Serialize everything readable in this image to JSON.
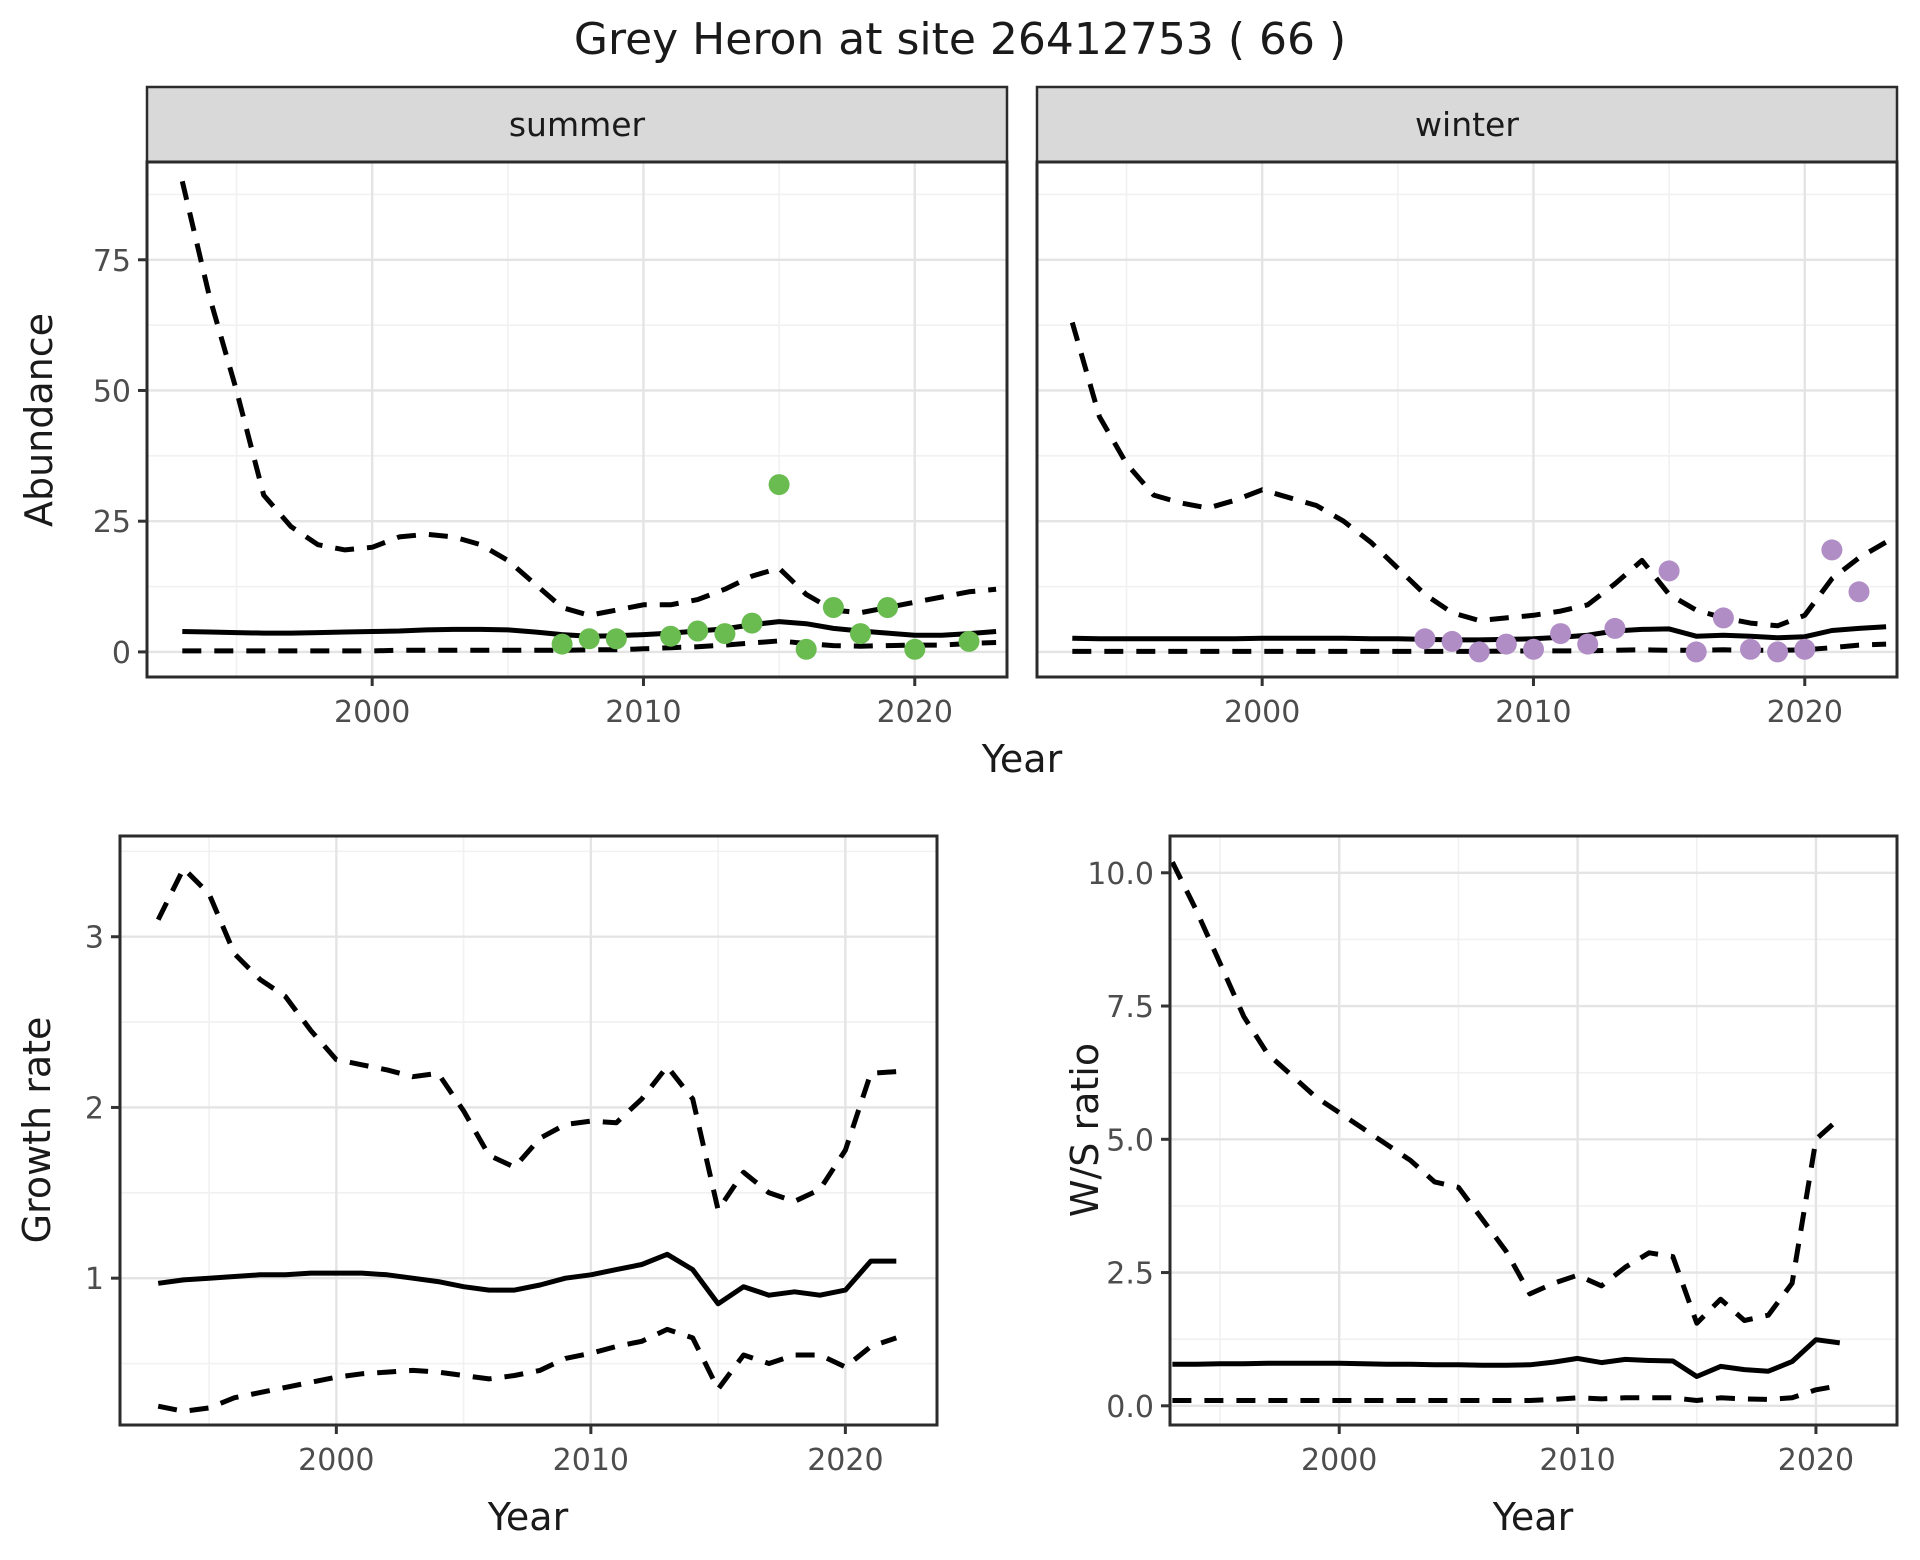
{
  "title": "Grey Heron at site 26412753 ( 66 )",
  "colors": {
    "summer_points": "#6abc51",
    "winter_points": "#b18dc6",
    "line": "#000000",
    "strip_bg": "#d9d9d9",
    "panel_border": "#2b2b2b",
    "grid_major": "#e4e4e4",
    "grid_minor": "#f1f1f1",
    "tick_text": "#4d4d4d"
  },
  "chart_data": [
    {
      "id": "abundance-summer",
      "type": "line",
      "facet_label": "summer",
      "ylabel": "Abundance",
      "xlabel": "Year",
      "xlim": [
        1991.7,
        2023.4
      ],
      "ylim": [
        -4.8,
        93.7
      ],
      "xticks": [
        2000,
        2010,
        2020
      ],
      "xtick_labels": [
        "2000",
        "2010",
        "2020"
      ],
      "xminor": [
        1995,
        2005,
        2015
      ],
      "yticks": [
        0,
        25,
        50,
        75
      ],
      "ytick_labels": [
        "0",
        "25",
        "50",
        "75"
      ],
      "yminor": [
        12.5,
        37.5,
        62.5,
        87.5
      ],
      "x": [
        1993,
        1994,
        1995,
        1996,
        1997,
        1998,
        1999,
        2000,
        2001,
        2002,
        2003,
        2004,
        2005,
        2006,
        2007,
        2008,
        2009,
        2010,
        2011,
        2012,
        2013,
        2014,
        2015,
        2016,
        2017,
        2018,
        2019,
        2020,
        2021,
        2022,
        2023
      ],
      "series": [
        {
          "name": "upper 95% CI",
          "style": "dashed",
          "y": [
            90,
            68,
            50,
            30,
            24,
            20.5,
            19.5,
            20,
            22,
            22.5,
            22,
            20.5,
            17.5,
            13,
            8.5,
            7,
            8,
            9,
            9,
            10,
            12,
            14.5,
            16,
            11,
            8,
            7.5,
            8.5,
            9.5,
            10.5,
            11.5,
            12
          ]
        },
        {
          "name": "median",
          "style": "solid",
          "y": [
            3.9,
            3.8,
            3.7,
            3.6,
            3.6,
            3.7,
            3.8,
            3.9,
            4.0,
            4.2,
            4.3,
            4.3,
            4.2,
            3.8,
            3.3,
            3.0,
            3.1,
            3.3,
            3.6,
            4.0,
            4.4,
            5.2,
            5.8,
            5.4,
            4.5,
            4.0,
            3.6,
            3.2,
            3.2,
            3.5,
            3.9
          ]
        },
        {
          "name": "lower 95% CI",
          "style": "dashed",
          "y": [
            0.2,
            0.2,
            0.2,
            0.2,
            0.2,
            0.2,
            0.2,
            0.2,
            0.3,
            0.3,
            0.3,
            0.3,
            0.3,
            0.3,
            0.3,
            0.4,
            0.4,
            0.6,
            0.8,
            1.0,
            1.3,
            1.7,
            2.1,
            1.6,
            1.2,
            1.1,
            1.2,
            1.3,
            1.3,
            1.6,
            1.8
          ]
        }
      ],
      "points": {
        "name": "observed summer counts",
        "color": "#6abc51",
        "x": [
          2007,
          2008,
          2009,
          2011,
          2012,
          2013,
          2014,
          2015,
          2016,
          2017,
          2018,
          2019,
          2020,
          2022
        ],
        "y": [
          1.5,
          2.5,
          2.5,
          3,
          4,
          3.5,
          5.5,
          32,
          0.5,
          8.5,
          3.5,
          8.5,
          0.5,
          2
        ]
      }
    },
    {
      "id": "abundance-winter",
      "type": "line",
      "facet_label": "winter",
      "ylabel": "Abundance",
      "xlabel": "Year",
      "xlim": [
        1991.7,
        2023.4
      ],
      "ylim": [
        -4.8,
        93.7
      ],
      "xticks": [
        2000,
        2010,
        2020
      ],
      "xtick_labels": [
        "2000",
        "2010",
        "2020"
      ],
      "xminor": [
        1995,
        2005,
        2015
      ],
      "yticks": [
        0,
        25,
        50,
        75
      ],
      "ytick_labels": [
        "0",
        "25",
        "50",
        "75"
      ],
      "yminor": [
        12.5,
        37.5,
        62.5,
        87.5
      ],
      "x": [
        1993,
        1994,
        1995,
        1996,
        1997,
        1998,
        1999,
        2000,
        2001,
        2002,
        2003,
        2004,
        2005,
        2006,
        2007,
        2008,
        2009,
        2010,
        2011,
        2012,
        2013,
        2014,
        2015,
        2016,
        2017,
        2018,
        2019,
        2020,
        2021,
        2022,
        2023
      ],
      "series": [
        {
          "name": "upper 95% CI",
          "style": "dashed",
          "y": [
            63,
            45,
            36,
            30,
            28.5,
            27.5,
            29,
            31,
            29.5,
            28,
            25,
            21,
            16,
            11,
            7.5,
            6,
            6.5,
            7,
            7.8,
            9,
            13,
            17.5,
            11,
            8,
            6.5,
            5.5,
            5,
            7,
            14,
            18,
            21
          ]
        },
        {
          "name": "median",
          "style": "solid",
          "y": [
            2.6,
            2.5,
            2.5,
            2.5,
            2.5,
            2.5,
            2.5,
            2.6,
            2.6,
            2.6,
            2.6,
            2.5,
            2.5,
            2.4,
            2.3,
            2.3,
            2.4,
            2.5,
            2.8,
            3.2,
            4.0,
            4.3,
            4.4,
            3.0,
            3.2,
            3.0,
            2.7,
            2.9,
            4.1,
            4.5,
            4.8
          ]
        },
        {
          "name": "lower 95% CI",
          "style": "dashed",
          "y": [
            0.1,
            0.1,
            0.1,
            0.1,
            0.1,
            0.1,
            0.1,
            0.1,
            0.1,
            0.1,
            0.1,
            0.1,
            0.1,
            0.1,
            0.1,
            0.1,
            0.15,
            0.2,
            0.2,
            0.2,
            0.3,
            0.4,
            0.3,
            0.3,
            0.4,
            0.3,
            0.3,
            0.4,
            0.8,
            1.3,
            1.5
          ]
        }
      ],
      "points": {
        "name": "observed winter counts",
        "color": "#b18dc6",
        "x": [
          2006,
          2007,
          2008,
          2009,
          2010,
          2011,
          2012,
          2013,
          2015,
          2016,
          2017,
          2018,
          2019,
          2020,
          2021,
          2022
        ],
        "y": [
          2.5,
          2,
          0,
          1.5,
          0.5,
          3.5,
          1.5,
          4.5,
          15.5,
          0,
          6.5,
          0.5,
          0,
          0.5,
          19.5,
          11.5
        ]
      }
    },
    {
      "id": "growth-rate",
      "type": "line",
      "facet_label": null,
      "ylabel": "Growth rate",
      "xlabel": "Year",
      "xlim": [
        1991.5,
        2023.6
      ],
      "ylim": [
        0.14,
        3.59
      ],
      "xticks": [
        2000,
        2010,
        2020
      ],
      "xtick_labels": [
        "2000",
        "2010",
        "2020"
      ],
      "xminor": [
        1995,
        2005,
        2015
      ],
      "yticks": [
        1,
        2,
        3
      ],
      "ytick_labels": [
        "1",
        "2",
        "3"
      ],
      "yminor": [
        0.5,
        1.5,
        2.5,
        3.5
      ],
      "x": [
        1993,
        1994,
        1995,
        1996,
        1997,
        1998,
        1999,
        2000,
        2001,
        2002,
        2003,
        2004,
        2005,
        2006,
        2007,
        2008,
        2009,
        2010,
        2011,
        2012,
        2013,
        2014,
        2015,
        2016,
        2017,
        2018,
        2019,
        2020,
        2021,
        2022
      ],
      "series": [
        {
          "name": "upper 95% CI",
          "style": "dashed",
          "y": [
            3.1,
            3.4,
            3.25,
            2.9,
            2.75,
            2.65,
            2.45,
            2.28,
            2.25,
            2.22,
            2.18,
            2.2,
            1.98,
            1.72,
            1.65,
            1.82,
            1.9,
            1.92,
            1.91,
            2.05,
            2.24,
            2.05,
            1.4,
            1.62,
            1.5,
            1.45,
            1.52,
            1.75,
            2.2,
            2.21
          ]
        },
        {
          "name": "median",
          "style": "solid",
          "y": [
            0.97,
            0.99,
            1.0,
            1.01,
            1.02,
            1.02,
            1.03,
            1.03,
            1.03,
            1.02,
            1.0,
            0.98,
            0.95,
            0.93,
            0.93,
            0.96,
            1.0,
            1.02,
            1.05,
            1.08,
            1.14,
            1.05,
            0.85,
            0.95,
            0.9,
            0.92,
            0.9,
            0.93,
            1.1,
            1.1
          ]
        },
        {
          "name": "lower 95% CI",
          "style": "dashed",
          "y": [
            0.25,
            0.22,
            0.24,
            0.3,
            0.33,
            0.36,
            0.39,
            0.42,
            0.44,
            0.45,
            0.46,
            0.45,
            0.43,
            0.41,
            0.43,
            0.46,
            0.53,
            0.56,
            0.6,
            0.63,
            0.7,
            0.65,
            0.35,
            0.55,
            0.5,
            0.55,
            0.55,
            0.48,
            0.6,
            0.65
          ]
        }
      ],
      "points": null
    },
    {
      "id": "ws-ratio",
      "type": "line",
      "facet_label": null,
      "ylabel": "W/S ratio",
      "xlabel": "Year",
      "xlim": [
        1992.9,
        2023.4
      ],
      "ylim": [
        -0.36,
        10.69
      ],
      "xticks": [
        2000,
        2010,
        2020
      ],
      "xtick_labels": [
        "2000",
        "2010",
        "2020"
      ],
      "xminor": [
        1995,
        2005,
        2015
      ],
      "yticks": [
        0,
        2.5,
        5,
        7.5,
        10
      ],
      "ytick_labels": [
        "0.0",
        "2.5",
        "5.0",
        "7.5",
        "10.0"
      ],
      "yminor": [
        1.25,
        3.75,
        6.25,
        8.75
      ],
      "x": [
        1993,
        1994,
        1995,
        1996,
        1997,
        1998,
        1999,
        2000,
        2001,
        2002,
        2003,
        2004,
        2005,
        2006,
        2007,
        2008,
        2009,
        2010,
        2011,
        2012,
        2013,
        2014,
        2015,
        2016,
        2017,
        2018,
        2019,
        2020,
        2021
      ],
      "series": [
        {
          "name": "upper 95% CI",
          "style": "dashed",
          "y": [
            10.2,
            9.3,
            8.3,
            7.3,
            6.6,
            6.2,
            5.8,
            5.5,
            5.2,
            4.9,
            4.6,
            4.2,
            4.1,
            3.5,
            2.9,
            2.1,
            2.3,
            2.45,
            2.25,
            2.6,
            2.87,
            2.8,
            1.55,
            2.0,
            1.6,
            1.7,
            2.3,
            5.0,
            5.4
          ]
        },
        {
          "name": "median",
          "style": "solid",
          "y": [
            0.78,
            0.78,
            0.79,
            0.79,
            0.8,
            0.8,
            0.8,
            0.8,
            0.79,
            0.78,
            0.78,
            0.77,
            0.77,
            0.76,
            0.76,
            0.77,
            0.82,
            0.89,
            0.81,
            0.87,
            0.85,
            0.84,
            0.55,
            0.74,
            0.68,
            0.65,
            0.83,
            1.24,
            1.18
          ]
        },
        {
          "name": "lower 95% CI",
          "style": "dashed",
          "y": [
            0.1,
            0.1,
            0.1,
            0.1,
            0.1,
            0.1,
            0.1,
            0.1,
            0.1,
            0.1,
            0.1,
            0.1,
            0.1,
            0.1,
            0.1,
            0.1,
            0.12,
            0.15,
            0.13,
            0.15,
            0.15,
            0.15,
            0.1,
            0.15,
            0.13,
            0.12,
            0.15,
            0.3,
            0.38
          ]
        }
      ],
      "points": null
    }
  ]
}
